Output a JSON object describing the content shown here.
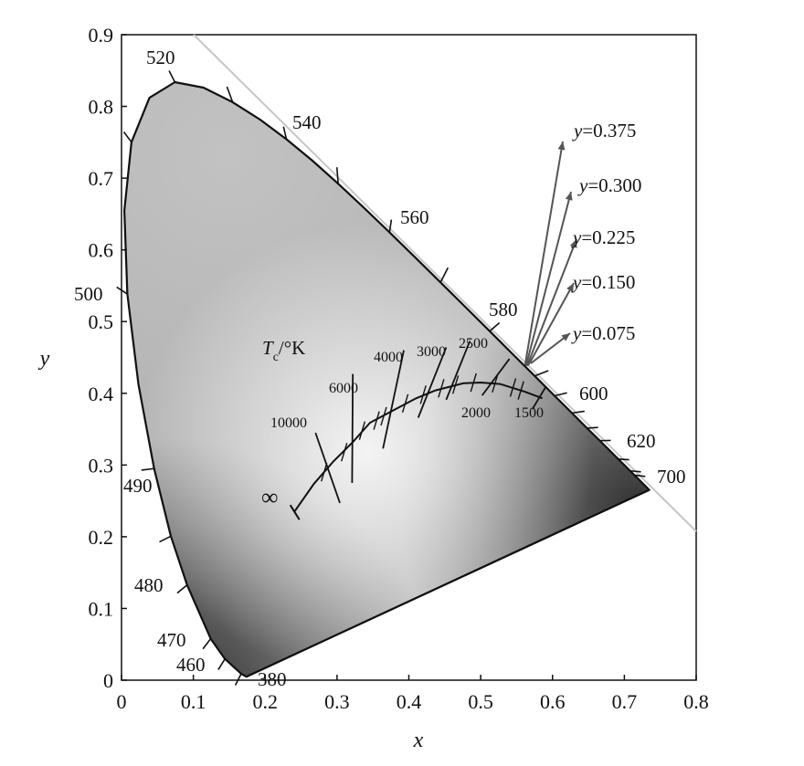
{
  "chart_data": {
    "type": "scatter",
    "title": "",
    "xlabel": "x",
    "ylabel": "y",
    "xlim": [
      0,
      0.8
    ],
    "ylim": [
      0,
      0.9
    ],
    "xticks": [
      "0",
      "0.1",
      "0.2",
      "0.3",
      "0.4",
      "0.5",
      "0.6",
      "0.7",
      "0.8"
    ],
    "yticks": [
      "0",
      "0.1",
      "0.2",
      "0.3",
      "0.4",
      "0.5",
      "0.6",
      "0.7",
      "0.8",
      "0.9"
    ],
    "grid": false,
    "spectral_locus": [
      [
        0.1741,
        0.005
      ],
      [
        0.1738,
        0.0049
      ],
      [
        0.1666,
        0.0089
      ],
      [
        0.144,
        0.0297
      ],
      [
        0.1241,
        0.0578
      ],
      [
        0.0913,
        0.1327
      ],
      [
        0.0687,
        0.2007
      ],
      [
        0.0454,
        0.295
      ],
      [
        0.0235,
        0.4127
      ],
      [
        0.0082,
        0.5384
      ],
      [
        0.0039,
        0.6548
      ],
      [
        0.0139,
        0.7502
      ],
      [
        0.0389,
        0.812
      ],
      [
        0.0743,
        0.8338
      ],
      [
        0.1142,
        0.8262
      ],
      [
        0.1547,
        0.8059
      ],
      [
        0.1929,
        0.7816
      ],
      [
        0.2296,
        0.7543
      ],
      [
        0.2658,
        0.7243
      ],
      [
        0.3016,
        0.6923
      ],
      [
        0.3373,
        0.6589
      ],
      [
        0.3731,
        0.6245
      ],
      [
        0.4087,
        0.5896
      ],
      [
        0.4441,
        0.5547
      ],
      [
        0.4788,
        0.5202
      ],
      [
        0.5125,
        0.4866
      ],
      [
        0.5448,
        0.4544
      ],
      [
        0.5752,
        0.4242
      ],
      [
        0.6029,
        0.3965
      ],
      [
        0.627,
        0.3725
      ],
      [
        0.6482,
        0.3514
      ],
      [
        0.6658,
        0.334
      ],
      [
        0.6915,
        0.3083
      ],
      [
        0.7079,
        0.292
      ],
      [
        0.714,
        0.2859
      ],
      [
        0.7347,
        0.2653
      ]
    ],
    "planckian_locus": [
      [
        0.586,
        0.393
      ],
      [
        0.562,
        0.402
      ],
      [
        0.527,
        0.413
      ],
      [
        0.5,
        0.415
      ],
      [
        0.476,
        0.414
      ],
      [
        0.437,
        0.404
      ],
      [
        0.41,
        0.393
      ],
      [
        0.38,
        0.377
      ],
      [
        0.346,
        0.359
      ],
      [
        0.322,
        0.332
      ],
      [
        0.295,
        0.305
      ],
      [
        0.268,
        0.274
      ],
      [
        0.24,
        0.234
      ]
    ],
    "infinity_point": [
      0.24,
      0.234
    ],
    "isotherm_labels": [
      "1500",
      "2000",
      "2500",
      "3000",
      "4000",
      "6000",
      "10000"
    ],
    "wavelength_labels": [
      "380",
      "460",
      "470",
      "480",
      "490",
      "500",
      "520",
      "540",
      "560",
      "580",
      "600",
      "620",
      "700"
    ],
    "line_labels": [
      "y=0.375",
      "y=0.300",
      "y=0.225",
      "y=0.150",
      "y=0.075"
    ],
    "gradient_colors": {
      "light": "#f1f1f1",
      "mid": "#b4b4b4",
      "dark": "#474747"
    }
  },
  "labels": {
    "x_axis": "x",
    "y_axis": "y",
    "tc_symbol": "T",
    "tc_subscript": "c",
    "tc_unit": "/°K",
    "infinity": "∞"
  }
}
